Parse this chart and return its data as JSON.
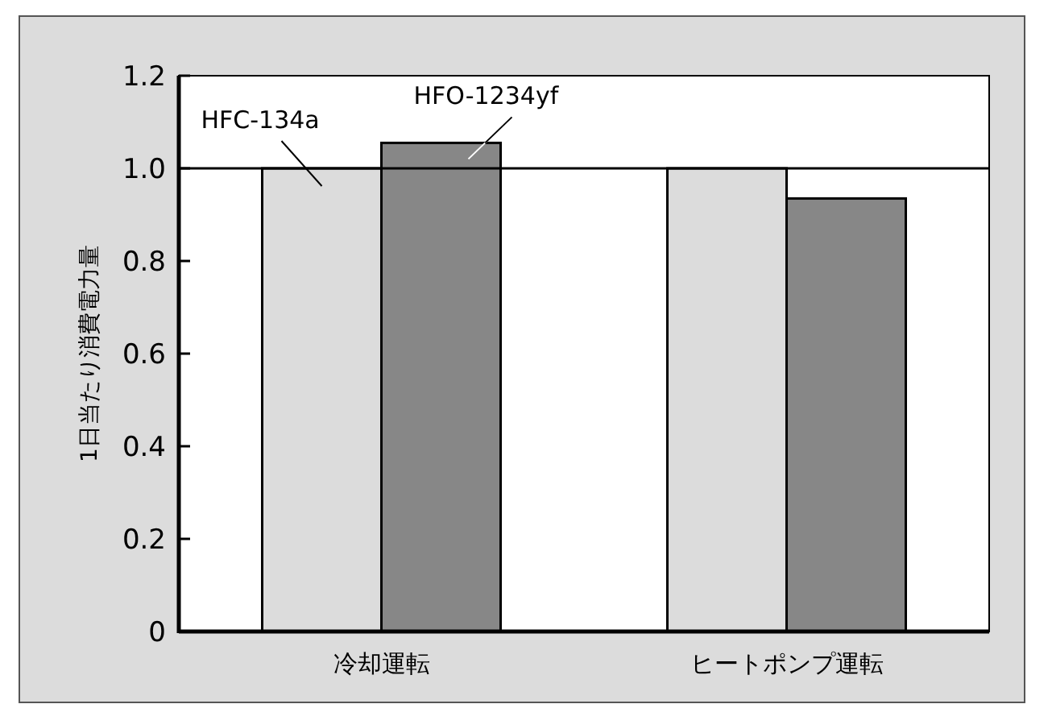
{
  "chart_data": {
    "type": "bar",
    "ylabel": "1日当たり消費電力量",
    "categories": [
      "冷却運転",
      "ヒートポンプ運転"
    ],
    "series": [
      {
        "name": "HFC-134a",
        "color": "#dcdcdc",
        "values": [
          1.0,
          1.0
        ]
      },
      {
        "name": "HFO-1234yf",
        "color": "#878787",
        "values": [
          1.055,
          0.935
        ]
      }
    ],
    "ylim": [
      0,
      1.2
    ],
    "yticks": [
      {
        "value": 0,
        "label": "0"
      },
      0.2,
      0.4,
      0.6,
      0.8,
      {
        "value": 1,
        "label": "1.0"
      },
      1.2
    ],
    "ref_lines": [
      {
        "axis": "y",
        "value": 1,
        "color": "#000000"
      }
    ],
    "legend": false,
    "grid": false
  }
}
